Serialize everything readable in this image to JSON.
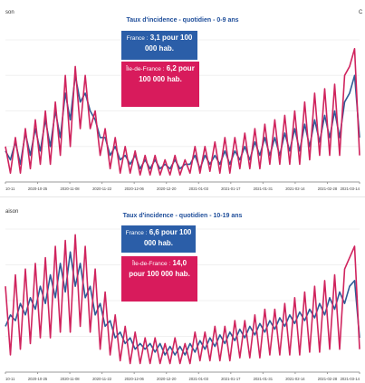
{
  "colors": {
    "france": "#2f5c96",
    "idf": "#d0245e",
    "grid": "#f0f0f0",
    "axis": "#999999"
  },
  "chart_data": [
    {
      "type": "line",
      "title": "Taux d'incidence - quotidien - 0-9 ans",
      "corner_left": "son",
      "corner_right": "C",
      "x_tick_labels": [
        "10-11",
        "2020-10-25",
        "2020-11-08",
        "2020-11-22",
        "2020-12-06",
        "2020-12-20",
        "2021-01-03",
        "2021-01-17",
        "2021-01-31",
        "2021-02-14",
        "2021-02-28",
        "2021-03-14"
      ],
      "tooltip_france": {
        "prefix": "France :",
        "value_text": "3,1 pour 100 000 hab."
      },
      "tooltip_idf": {
        "prefix": "Île-de-France :",
        "value_text": "6,2 pour 100 000 hab."
      },
      "ylim": [
        0,
        16
      ],
      "series": [
        {
          "name": "France",
          "values": [
            3.5,
            2.5,
            4.5,
            2,
            5.5,
            3,
            6,
            3.5,
            7,
            4,
            8,
            5,
            10,
            7,
            12,
            9,
            10,
            8,
            7,
            5,
            5,
            3,
            4,
            2.5,
            3,
            2,
            3,
            1.5,
            2.5,
            1.5,
            2.5,
            1.5,
            2,
            1.5,
            2.5,
            1.5,
            2,
            2,
            3,
            1.5,
            3,
            2,
            3,
            2,
            3.5,
            2,
            3.5,
            2.5,
            4,
            2.5,
            4.5,
            3,
            5,
            3,
            5,
            3,
            5.5,
            3.5,
            6,
            3.5,
            6.5,
            4,
            7,
            4.5,
            7.5,
            5,
            8,
            5,
            9,
            10,
            12,
            5
          ]
        },
        {
          "name": "Île-de-France",
          "values": [
            4,
            1,
            5,
            1,
            6,
            1.5,
            7,
            2,
            8,
            2,
            9,
            3,
            12,
            4,
            13,
            6,
            12,
            6,
            8,
            3,
            6,
            1.5,
            5,
            1,
            4,
            1,
            3.5,
            0.8,
            3,
            0.8,
            3,
            0.8,
            2.5,
            0.8,
            3,
            0.8,
            2.5,
            1,
            4,
            1,
            4,
            1.2,
            4.5,
            1,
            5,
            1,
            5,
            1.5,
            5.5,
            1.5,
            6,
            1.5,
            6.5,
            2,
            7,
            2,
            7.5,
            2,
            8,
            2,
            9,
            2.5,
            10,
            3,
            10.5,
            3,
            11,
            3,
            12,
            13,
            15,
            3
          ]
        }
      ]
    },
    {
      "type": "line",
      "title": "Taux d'incidence - quotidien - 10-19 ans",
      "corner_left": "aison",
      "x_tick_labels": [
        "10-11",
        "2020-10-25",
        "2020-11-08",
        "2020-11-22",
        "2020-12-06",
        "2020-12-20",
        "2021-01-03",
        "2021-01-17",
        "2021-01-31",
        "2021-02-14",
        "2021-02-28",
        "2021-03-14"
      ],
      "tooltip_france": {
        "prefix": "France :",
        "value_text": "6,6 pour 100 000 hab."
      },
      "tooltip_idf": {
        "prefix": "Île-de-France :",
        "value_text": "14,0 pour 100 000 hab."
      },
      "ylim": [
        0,
        25
      ],
      "series": [
        {
          "name": "France",
          "values": [
            8,
            10,
            9,
            12,
            10,
            13,
            11,
            15,
            12,
            17,
            13,
            19,
            14,
            21,
            15,
            19,
            13,
            15,
            10,
            12,
            8,
            9,
            6,
            7,
            5,
            6,
            4,
            5,
            4,
            5,
            3.5,
            5,
            3,
            4.5,
            3,
            4.5,
            3,
            5,
            3.5,
            5.5,
            4,
            6,
            4.5,
            6.5,
            5,
            7,
            5.5,
            7.5,
            6,
            8,
            6.5,
            8.5,
            7,
            9,
            7.5,
            9.5,
            8,
            10,
            8.5,
            10.5,
            9,
            11,
            9.5,
            12,
            10,
            13,
            11,
            14,
            12,
            15,
            16,
            6
          ]
        },
        {
          "name": "Île-de-France",
          "values": [
            15,
            3,
            17,
            4,
            18,
            5,
            19,
            6,
            20,
            6,
            22,
            7,
            23,
            7,
            24,
            8,
            22,
            7,
            18,
            4,
            14,
            3,
            10,
            2,
            8,
            1.5,
            7,
            1.5,
            6,
            1.5,
            6,
            1.5,
            5,
            1.5,
            6,
            1.5,
            5,
            1.5,
            7,
            2,
            7,
            2,
            8,
            2,
            8,
            2,
            9,
            2.5,
            9,
            2.5,
            10,
            2.5,
            11,
            3,
            11,
            3,
            12,
            3,
            13,
            3,
            14,
            3.5,
            15,
            3.5,
            16,
            4,
            17,
            4,
            18,
            20,
            22,
            4
          ]
        }
      ]
    }
  ]
}
